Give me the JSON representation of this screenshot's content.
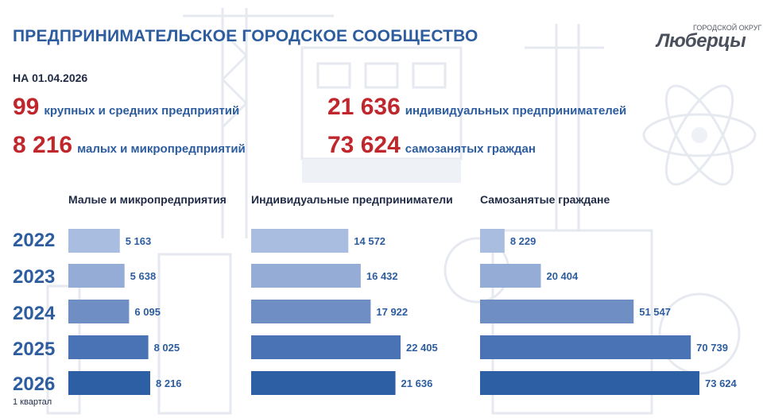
{
  "header": {
    "title": "ПРЕДПРИНИМАТЕЛЬСКОЕ ГОРОДСКОЕ СООБЩЕСТВО",
    "logo_small": "ГОРОДСКОЙ ОКРУГ",
    "logo_main": "Люберцы"
  },
  "summary": {
    "date_label": "НА 01.04.2026",
    "stats": [
      {
        "value": "99",
        "label": "крупных и средних предприятий"
      },
      {
        "value": "8 216",
        "label": "малых и микропредприятий"
      },
      {
        "value": "21 636",
        "label": "индивидуальных предпринимателей"
      },
      {
        "value": "73 624",
        "label": "самозанятых граждан"
      }
    ]
  },
  "year_note": "1 квартал",
  "colors": {
    "title_blue": "#2d5d9f",
    "stat_red": "#c0272d",
    "bar_colors": [
      "#a9bde0",
      "#95acd6",
      "#6f8ec4",
      "#4a73b6",
      "#2c5fa3"
    ]
  },
  "chart_data": {
    "type": "bar",
    "orientation": "horizontal",
    "categories": [
      "2022",
      "2023",
      "2024",
      "2025",
      "2026"
    ],
    "series": [
      {
        "name": "Малые и микропредприятия",
        "values": [
          5163,
          5638,
          6095,
          8025,
          8216
        ],
        "labels": [
          "5 163",
          "5 638",
          "6 095",
          "8 025",
          "8 216"
        ]
      },
      {
        "name": "Индивидуальные предприниматели",
        "values": [
          14572,
          16432,
          17922,
          22405,
          21636
        ],
        "labels": [
          "14 572",
          "16 432",
          "17 922",
          "22 405",
          "21 636"
        ]
      },
      {
        "name": "Самозанятые граждане",
        "values": [
          8229,
          20404,
          51547,
          70739,
          73624
        ],
        "labels": [
          "8 229",
          "20 404",
          "51 547",
          "70 739",
          "73 624"
        ]
      }
    ]
  }
}
